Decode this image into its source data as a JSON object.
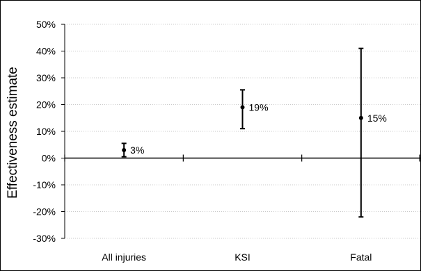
{
  "chart_data": {
    "type": "scatter",
    "title": "",
    "xlabel": "",
    "ylabel": "Effectiveness estimate",
    "categories": [
      "All injuries",
      "KSI",
      "Fatal"
    ],
    "series": [
      {
        "values": [
          3,
          19,
          15
        ],
        "error_low": [
          0.5,
          11,
          -22
        ],
        "error_high": [
          5.5,
          25.5,
          41
        ],
        "data_labels": [
          "3%",
          "19%",
          "15%"
        ]
      }
    ],
    "ylim": [
      -30,
      50
    ],
    "yticks": [
      -30,
      -20,
      -10,
      0,
      10,
      20,
      30,
      40,
      50
    ],
    "ytick_labels": [
      "-30%",
      "-20%",
      "-10%",
      "0%",
      "10%",
      "20%",
      "30%",
      "40%",
      "50%"
    ],
    "grid": true,
    "legend": "none",
    "colors": {
      "marks": "#000000",
      "grid": "#c8c8c8",
      "background": "#ffffff"
    }
  }
}
